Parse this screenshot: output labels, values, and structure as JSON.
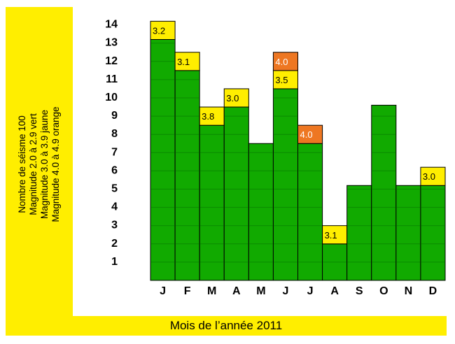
{
  "chart_data": {
    "type": "bar",
    "title": "",
    "xlabel": "Mois de l’année 2011",
    "ylabel_lines": [
      "Nombre de séisme 100",
      "Magnitude 2.0 à 2.9 vert",
      "Magnitude 3.0 à 3.9 jaune",
      "Magnitude 4.0 à 4.9 orange"
    ],
    "categories": [
      "J",
      "F",
      "M",
      "A",
      "M",
      "J",
      "J",
      "A",
      "S",
      "O",
      "N",
      "D"
    ],
    "yticks": [
      1,
      2,
      3,
      4,
      5,
      6,
      7,
      8,
      9,
      10,
      11,
      12,
      13,
      14
    ],
    "ylim": [
      0,
      14
    ],
    "grid": true,
    "colors": {
      "green": "#11aa00",
      "yellow": "#ffee00",
      "orange": "#ee7722",
      "label_bg": "#ffee00"
    },
    "bars": [
      {
        "category": "J",
        "stack": [
          {
            "value": 13.2,
            "color": "green"
          },
          {
            "value": 1,
            "color": "yellow",
            "label": "3.2"
          }
        ]
      },
      {
        "category": "F",
        "stack": [
          {
            "value": 11.5,
            "color": "green"
          },
          {
            "value": 1,
            "color": "yellow",
            "label": "3.1"
          }
        ]
      },
      {
        "category": "M",
        "stack": [
          {
            "value": 8.5,
            "color": "green"
          },
          {
            "value": 1,
            "color": "yellow",
            "label": "3.8"
          }
        ]
      },
      {
        "category": "A",
        "stack": [
          {
            "value": 9.5,
            "color": "green"
          },
          {
            "value": 1,
            "color": "yellow",
            "label": "3.0"
          }
        ]
      },
      {
        "category": "M",
        "stack": [
          {
            "value": 7.5,
            "color": "green"
          }
        ]
      },
      {
        "category": "J",
        "stack": [
          {
            "value": 10.5,
            "color": "green"
          },
          {
            "value": 1,
            "color": "yellow",
            "label": "3.5"
          },
          {
            "value": 1,
            "color": "orange",
            "label": "4.0"
          }
        ]
      },
      {
        "category": "J",
        "stack": [
          {
            "value": 7.5,
            "color": "green"
          },
          {
            "value": 1,
            "color": "orange",
            "label": "4.0"
          }
        ]
      },
      {
        "category": "A",
        "stack": [
          {
            "value": 2,
            "color": "green"
          },
          {
            "value": 1,
            "color": "yellow",
            "label": "3.1"
          }
        ]
      },
      {
        "category": "S",
        "stack": [
          {
            "value": 5.2,
            "color": "green"
          }
        ]
      },
      {
        "category": "O",
        "stack": [
          {
            "value": 9.6,
            "color": "green"
          }
        ]
      },
      {
        "category": "N",
        "stack": [
          {
            "value": 5.2,
            "color": "green"
          }
        ]
      },
      {
        "category": "D",
        "stack": [
          {
            "value": 5.2,
            "color": "green"
          },
          {
            "value": 1,
            "color": "yellow",
            "label": "3.0"
          }
        ]
      }
    ]
  }
}
